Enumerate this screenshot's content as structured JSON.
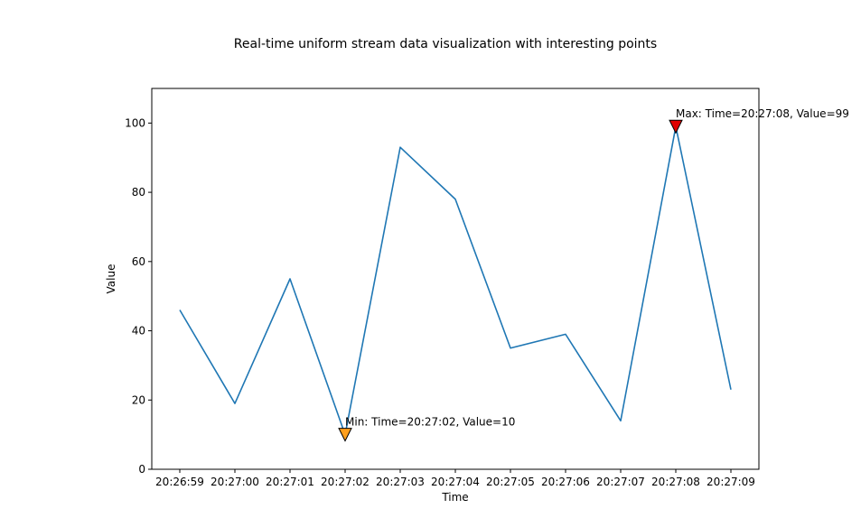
{
  "chart_data": {
    "type": "line",
    "title": "Real-time uniform stream data visualization with interesting points",
    "xlabel": "Time",
    "ylabel": "Value",
    "categories": [
      "20:26:59",
      "20:27:00",
      "20:27:01",
      "20:27:02",
      "20:27:03",
      "20:27:04",
      "20:27:05",
      "20:27:06",
      "20:27:07",
      "20:27:08",
      "20:27:09"
    ],
    "series": [
      {
        "values": [
          46,
          19,
          55,
          10,
          93,
          78,
          35,
          39,
          14,
          99,
          23
        ],
        "color": "#1f77b4"
      }
    ],
    "ylim": [
      0,
      110
    ],
    "yticks": [
      0,
      20,
      40,
      60,
      80,
      100
    ],
    "grid": false,
    "legend": "none",
    "annotations": [
      {
        "kind": "min",
        "index": 3,
        "value": 10,
        "text": "Min: Time=20:27:02, Value=10",
        "marker": "triangle-down",
        "color": "#ff9f1c"
      },
      {
        "kind": "max",
        "index": 9,
        "value": 99,
        "text": "Max: Time=20:27:08, Value=99",
        "marker": "triangle-down",
        "color": "#e00000"
      }
    ]
  }
}
